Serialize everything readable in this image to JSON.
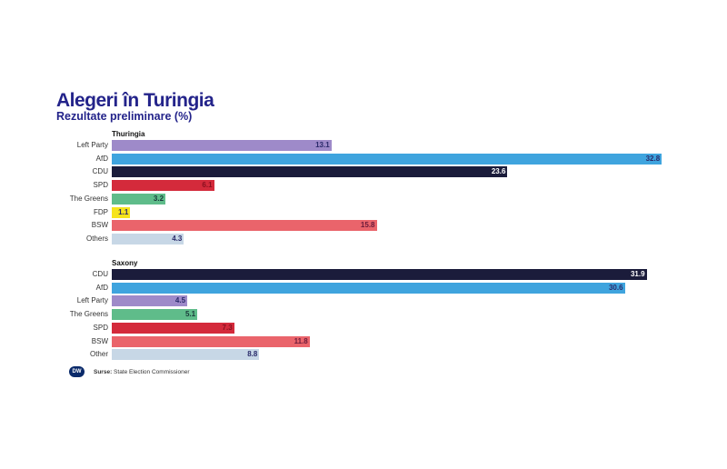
{
  "chart_data": [
    {
      "type": "bar",
      "orientation": "horizontal",
      "title": "Alegeri în Turingia",
      "subtitle": "Rezultate preliminare (%)",
      "group": "Thuringia",
      "categories": [
        "Left Party",
        "AfD",
        "CDU",
        "SPD",
        "The Greens",
        "FDP",
        "BSW",
        "Others"
      ],
      "values": [
        13.1,
        32.8,
        23.6,
        6.1,
        3.2,
        1.1,
        15.8,
        4.3
      ],
      "colors": [
        "#9e8ac9",
        "#3fa4de",
        "#1b1c3b",
        "#d42a3b",
        "#5fbc8a",
        "#f6e41c",
        "#ea646b",
        "#c7d7e6"
      ],
      "label_colors": [
        "#2a2a6a",
        "#2a2a6a",
        "#ffffff",
        "#8a1020",
        "#1a3a3a",
        "#2a2a6a",
        "#6a1a3a",
        "#2a2a6a"
      ],
      "xlim": [
        0,
        32.8
      ]
    },
    {
      "type": "bar",
      "orientation": "horizontal",
      "group": "Saxony",
      "categories": [
        "CDU",
        "AfD",
        "Left Party",
        "The Greens",
        "SPD",
        "BSW",
        "Other"
      ],
      "values": [
        31.9,
        30.6,
        4.5,
        5.1,
        7.3,
        11.8,
        8.8
      ],
      "colors": [
        "#1b1c3b",
        "#3fa4de",
        "#9e8ac9",
        "#5fbc8a",
        "#d42a3b",
        "#ea646b",
        "#c7d7e6"
      ],
      "label_colors": [
        "#ffffff",
        "#2a2a6a",
        "#2a2a6a",
        "#1a3a3a",
        "#8a1020",
        "#6a1a3a",
        "#2a2a6a"
      ],
      "xlim": [
        0,
        32.8
      ]
    }
  ],
  "footer": {
    "logo": "DW",
    "source_label": "Surse:",
    "source": "State Election Commissioner"
  }
}
